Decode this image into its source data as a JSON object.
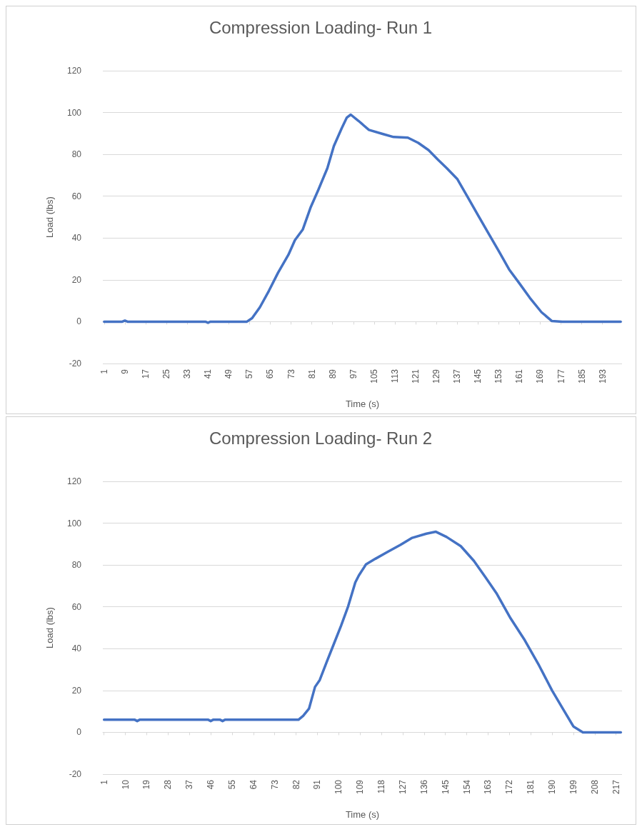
{
  "chart_data": [
    {
      "type": "line",
      "title": "Compression Loading- Run 1",
      "xlabel": "Time (s)",
      "ylabel": "Load (lbs)",
      "xlim": [
        0.5,
        200.5
      ],
      "xticks": [
        1,
        9,
        17,
        25,
        33,
        41,
        49,
        57,
        65,
        73,
        81,
        89,
        97,
        105,
        113,
        121,
        129,
        137,
        145,
        153,
        161,
        169,
        177,
        185,
        193
      ],
      "ylim": [
        -20,
        120
      ],
      "yticks": [
        -20,
        0,
        20,
        40,
        60,
        80,
        100,
        120
      ],
      "grid": "y",
      "series": [
        {
          "color": "#4472c4",
          "x": [
            1,
            8,
            9,
            10,
            40,
            41,
            42,
            56,
            58,
            61,
            64.5,
            68,
            72,
            74.5,
            77.5,
            80.5,
            83.5,
            87,
            89.5,
            92.5,
            94.5,
            96,
            99,
            103,
            108.5,
            112.5,
            118,
            122,
            126,
            129.5,
            133,
            137,
            141,
            145,
            149,
            153,
            157,
            161,
            165,
            169.5,
            173.5,
            177.5,
            200
          ],
          "values": [
            0,
            0,
            0.5,
            0,
            0,
            -0.5,
            0,
            0,
            1.7,
            6.9,
            14.8,
            23.4,
            32,
            39,
            44,
            54.5,
            63,
            73.4,
            84,
            92.4,
            97.6,
            99,
            96,
            91.7,
            89.7,
            88.3,
            88,
            85.5,
            82,
            77.6,
            73.4,
            68.3,
            59.7,
            51,
            42.4,
            33.8,
            25,
            18.3,
            11.4,
            4.5,
            0.3,
            0,
            0
          ]
        }
      ]
    },
    {
      "type": "line",
      "title": "Compression Loading- Run 2",
      "xlabel": "Time (s)",
      "ylabel": "Load (lbs)",
      "xlim": [
        0.5,
        219.5
      ],
      "xticks": [
        1,
        10,
        19,
        28,
        37,
        46,
        55,
        64,
        73,
        82,
        91,
        100,
        109,
        118,
        127,
        136,
        145,
        154,
        163,
        172,
        181,
        190,
        199,
        208,
        217
      ],
      "ylim": [
        -20,
        120
      ],
      "yticks": [
        -20,
        0,
        20,
        40,
        60,
        80,
        100,
        120
      ],
      "grid": "y",
      "series": [
        {
          "color": "#4472c4",
          "x": [
            1,
            14,
            15,
            16,
            45,
            46,
            47,
            50,
            51,
            52,
            83,
            85,
            87.5,
            90,
            92,
            95,
            98,
            101,
            104,
            107,
            108.5,
            111.5,
            115.5,
            120.5,
            126,
            131,
            137,
            141,
            145.5,
            151.5,
            157,
            162,
            166.5,
            172.5,
            178.5,
            184.5,
            190,
            194.5,
            199,
            203,
            219
          ],
          "values": [
            6,
            6,
            5.4,
            6,
            6,
            5.4,
            6,
            6,
            5.4,
            6,
            6,
            7.9,
            11.4,
            21.7,
            25,
            33.8,
            42.4,
            51,
            60.3,
            71.7,
            75,
            80.3,
            83,
            86.2,
            89.6,
            93,
            95,
            95.9,
            93.4,
            89,
            82,
            74,
            66.6,
            54.5,
            44,
            32,
            20,
            11.4,
            2.8,
            0,
            0
          ]
        }
      ]
    }
  ]
}
